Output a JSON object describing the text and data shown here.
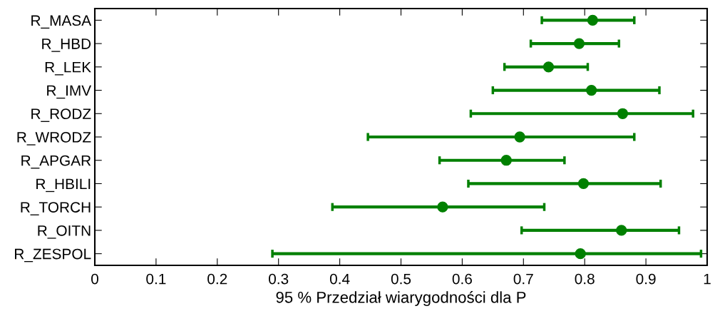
{
  "chart_data": {
    "type": "scatter",
    "orientation": "horizontal",
    "xlabel": "95 % Przedział wiarygodności dla P",
    "categories": [
      "R_MASA",
      "R_HBD",
      "R_LEK",
      "R_IMV",
      "R_RODZ",
      "R_WRODZ",
      "R_APGAR",
      "R_HBILI",
      "R_TORCH",
      "R_OITN",
      "R_ZESPOL"
    ],
    "values": [
      0.813,
      0.791,
      0.741,
      0.811,
      0.862,
      0.694,
      0.672,
      0.798,
      0.568,
      0.86,
      0.793
    ],
    "errors": [
      [
        0.73,
        0.881
      ],
      [
        0.712,
        0.856
      ],
      [
        0.669,
        0.805
      ],
      [
        0.65,
        0.922
      ],
      [
        0.614,
        0.977
      ],
      [
        0.446,
        0.881
      ],
      [
        0.563,
        0.767
      ],
      [
        0.61,
        0.924
      ],
      [
        0.388,
        0.734
      ],
      [
        0.697,
        0.954
      ],
      [
        0.29,
        0.99
      ]
    ],
    "color": "#008000",
    "marker": "circle",
    "grid": false,
    "legend": false,
    "xlim": [
      0,
      1
    ],
    "xticks": [
      0,
      0.1,
      0.2,
      0.3,
      0.4,
      0.5,
      0.6,
      0.7,
      0.8,
      0.9,
      1
    ]
  }
}
